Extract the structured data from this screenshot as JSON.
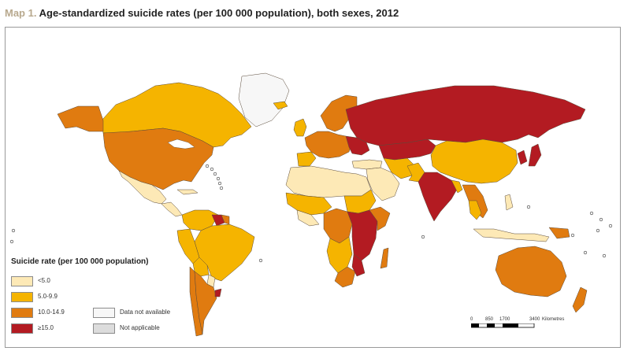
{
  "title": {
    "prefix": "Map 1.",
    "text": "Age-standardized suicide rates (per 100 000 population), both sexes, 2012"
  },
  "colors": {
    "lt5": "#fde9b6",
    "r5_9": "#f5b400",
    "r10_14": "#e07b10",
    "ge15": "#b31b22",
    "na": "#f7f7f7",
    "notapp": "#dcdcdc",
    "ocean": "#ffffff",
    "border": "#5a4a3a"
  },
  "legend": {
    "title": "Suicide rate (per 100 000 population)",
    "items": [
      {
        "label": "<5.0",
        "color": "#fde9b6"
      },
      {
        "label": "5.0-9.9",
        "color": "#f5b400"
      },
      {
        "label": "10.0-14.9",
        "color": "#e07b10"
      },
      {
        "label": "≥15.0",
        "color": "#b31b22"
      },
      {
        "label": "Data not available",
        "color": "#f7f7f7"
      },
      {
        "label": "Not applicable",
        "color": "#dcdcdc"
      }
    ]
  },
  "scale": {
    "ticks": [
      "0",
      "850",
      "1700",
      "3400"
    ],
    "unit": "Kilometres"
  }
}
